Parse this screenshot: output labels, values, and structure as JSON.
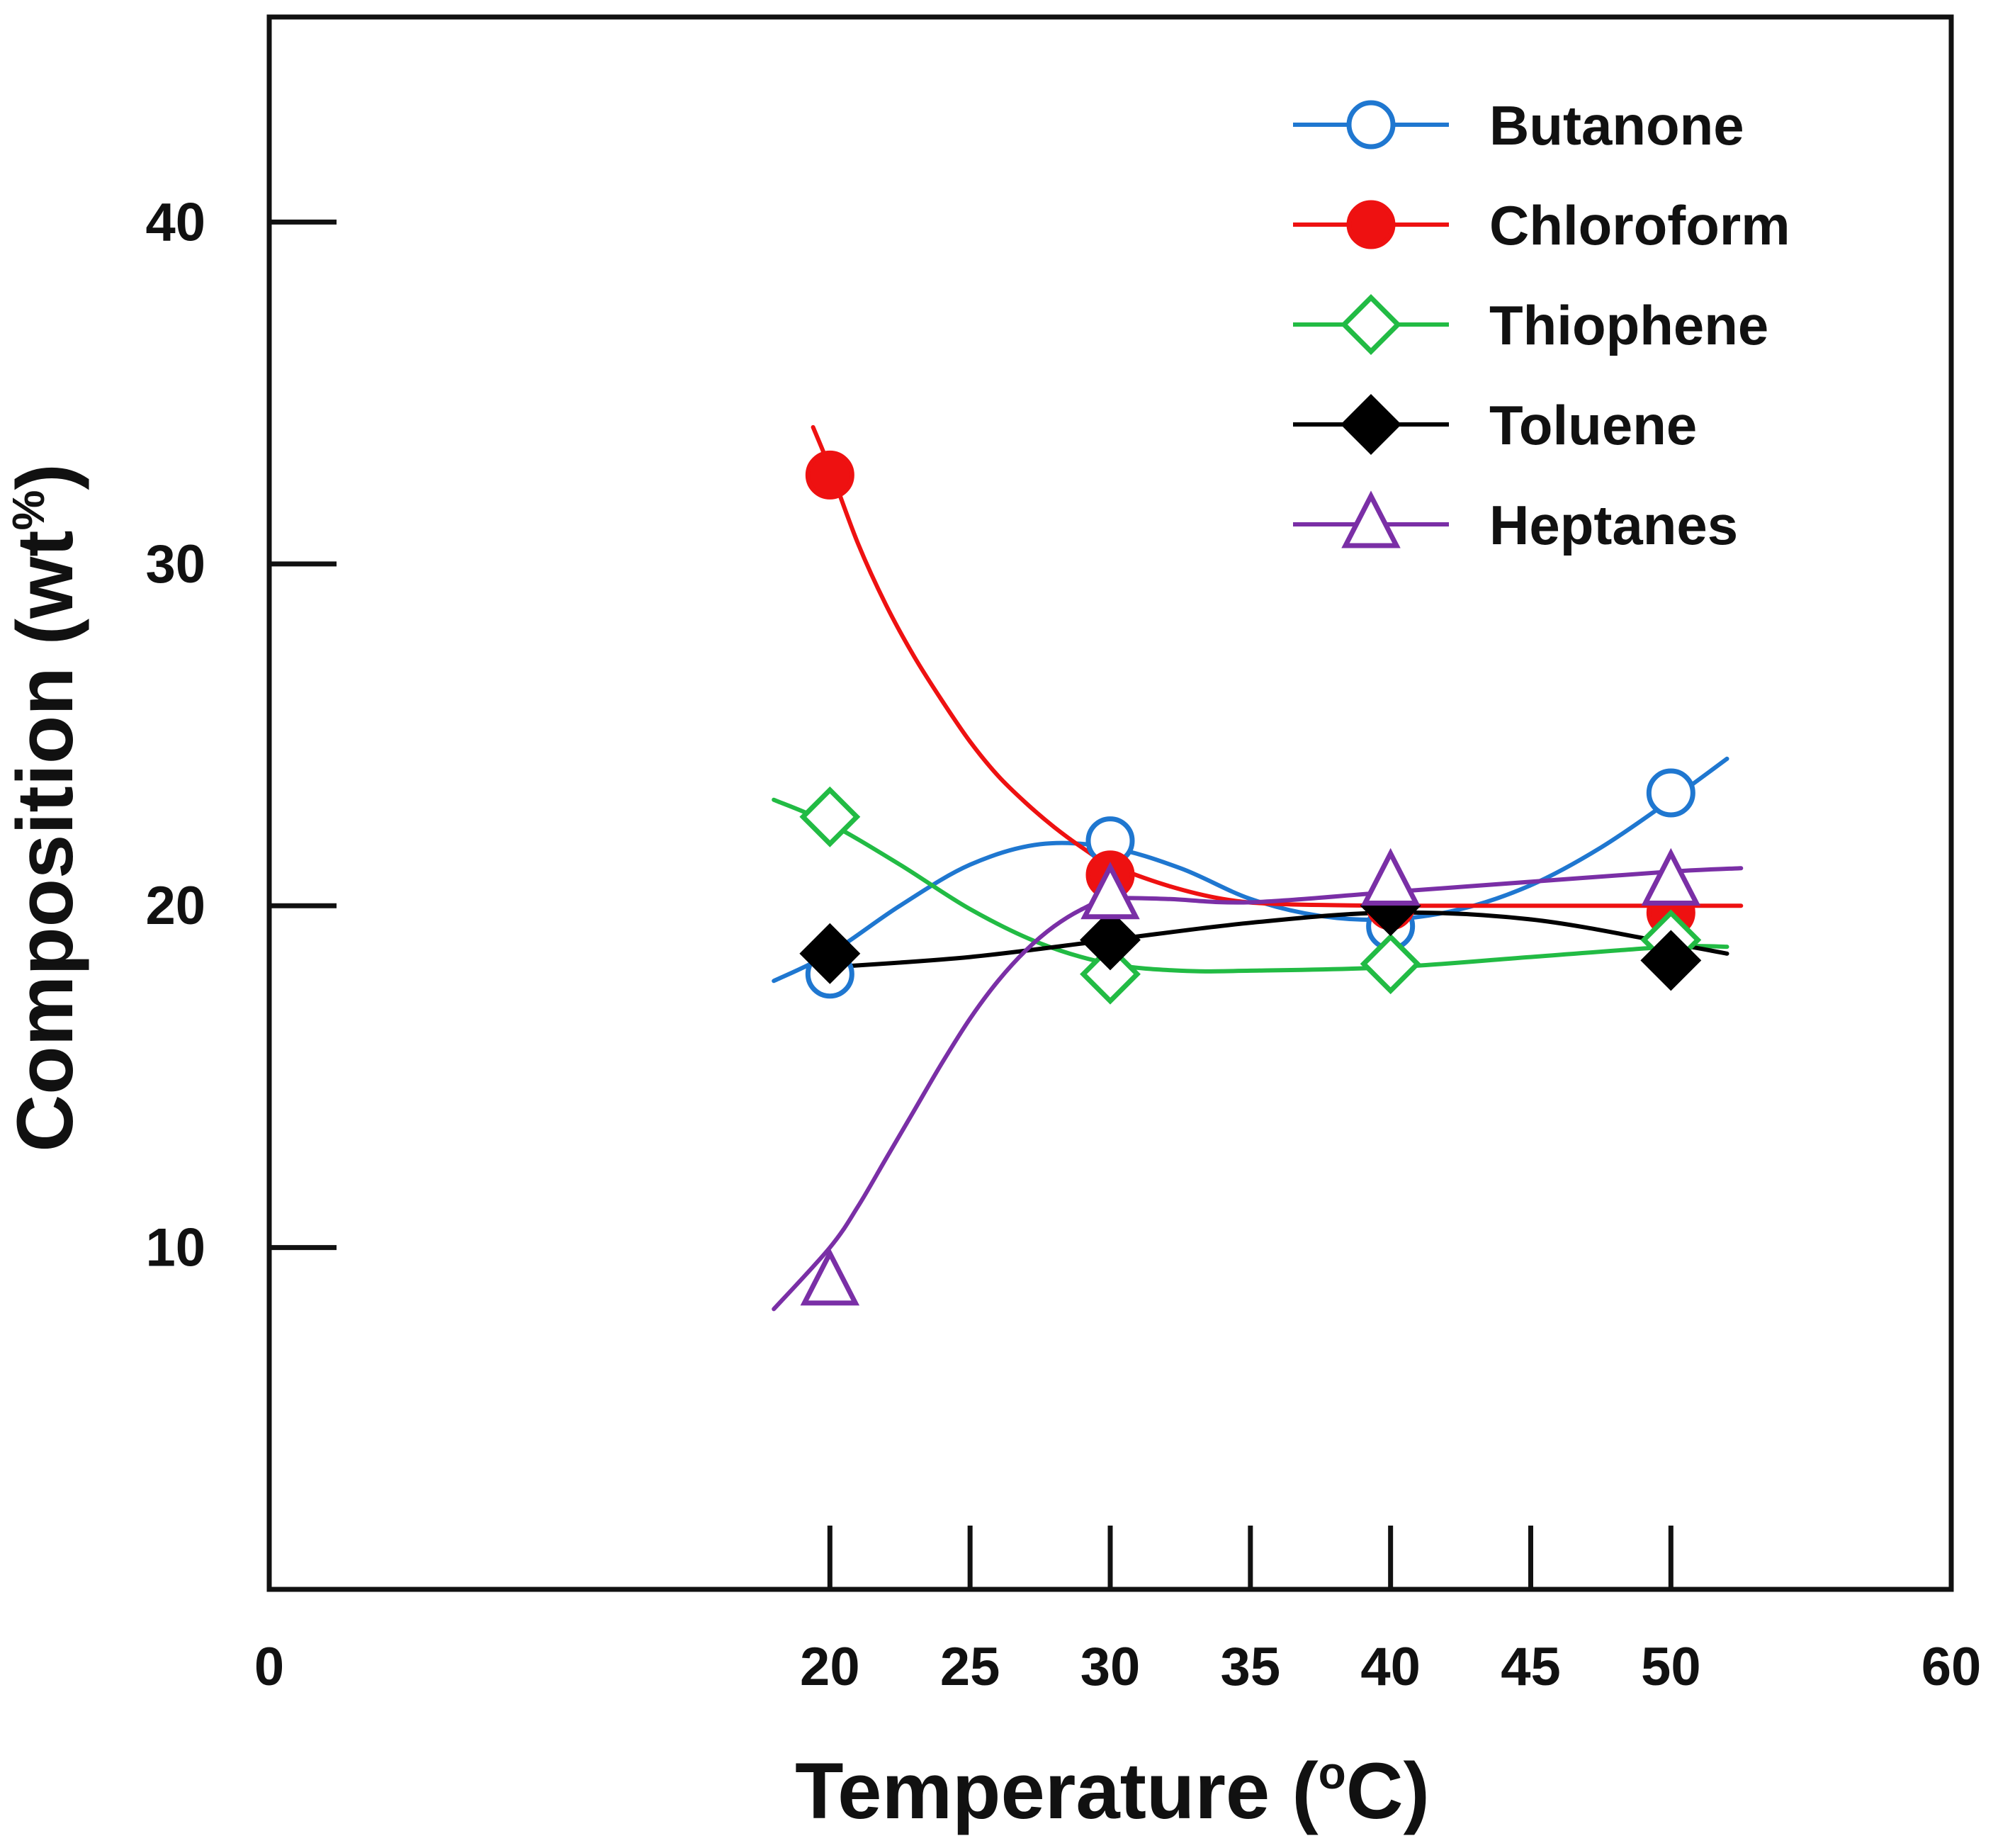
{
  "chart_data": {
    "type": "line",
    "title": "",
    "xlabel": "Temperature (",
    "xlabel_sup": "o",
    "xlabel_tail": "C)",
    "ylabel": "Composition (wt",
    "ylabel_sup": "%",
    "ylabel_tail": ")",
    "xlim": [
      0,
      60
    ],
    "ylim": [
      0,
      46
    ],
    "x_ticks": [
      0,
      20,
      25,
      30,
      35,
      40,
      45,
      50,
      60
    ],
    "x_tick_labels": [
      "0",
      "20",
      "25",
      "30",
      "35",
      "40",
      "45",
      "50",
      "60"
    ],
    "x_tick_marks": [
      20,
      25,
      30,
      35,
      40,
      45,
      50
    ],
    "y_ticks": [
      10,
      20,
      30,
      40
    ],
    "y_tick_labels": [
      "10",
      "20",
      "30",
      "40"
    ],
    "grid": false,
    "legend_position": "top-right",
    "x": [
      20,
      30,
      40,
      50
    ],
    "series": [
      {
        "name": "Butanone",
        "color": "#1f77d0",
        "marker": "circle-open",
        "values": [
          18.0,
          21.9,
          19.4,
          23.3
        ],
        "curve_x": [
          18,
          20,
          22.5,
          25,
          27.5,
          30,
          32.5,
          35,
          37.5,
          40,
          42.5,
          45,
          47.5,
          50,
          52
        ],
        "curve_y": [
          17.8,
          18.6,
          20.0,
          21.2,
          21.8,
          21.7,
          21.1,
          20.2,
          19.7,
          19.6,
          19.9,
          20.6,
          21.7,
          23.1,
          24.3
        ]
      },
      {
        "name": "Chloroform",
        "color": "#ee1111",
        "marker": "circle-filled",
        "values": [
          32.6,
          20.9,
          20.0,
          19.8
        ],
        "curve_x": [
          19.4,
          20,
          21,
          22,
          23,
          24,
          25,
          26,
          27,
          28,
          29,
          30,
          32,
          34,
          36,
          40,
          45,
          52.5
        ],
        "curve_y": [
          34.0,
          32.8,
          30.6,
          28.8,
          27.3,
          26.0,
          24.8,
          23.8,
          23.0,
          22.3,
          21.7,
          21.2,
          20.6,
          20.2,
          20.05,
          20.0,
          20.0,
          20.0
        ]
      },
      {
        "name": "Thiophene",
        "color": "#22bb44",
        "marker": "diamond-open",
        "values": [
          22.6,
          18.0,
          18.3,
          19.0
        ],
        "curve_x": [
          18,
          20,
          22.5,
          25,
          27.5,
          30,
          32.5,
          35,
          40,
          45,
          50,
          52
        ],
        "curve_y": [
          23.1,
          22.4,
          21.2,
          19.9,
          18.9,
          18.3,
          18.1,
          18.1,
          18.2,
          18.5,
          18.8,
          18.8
        ]
      },
      {
        "name": "Toluene",
        "color": "#000000",
        "marker": "diamond-filled",
        "values": [
          18.6,
          19.0,
          20.0,
          18.4
        ],
        "curve_x": [
          20,
          25,
          30,
          35,
          40,
          45,
          50,
          52
        ],
        "curve_y": [
          18.2,
          18.5,
          19.0,
          19.5,
          19.8,
          19.6,
          18.9,
          18.6
        ]
      },
      {
        "name": "Heptanes",
        "color": "#7a2fa6",
        "marker": "triangle-open",
        "values": [
          9.0,
          20.3,
          20.7,
          20.7
        ],
        "curve_x": [
          18,
          20,
          21,
          22,
          23,
          24,
          25,
          26,
          27,
          28,
          29,
          30,
          32,
          35,
          40,
          45,
          50,
          52.5
        ],
        "curve_y": [
          8.2,
          10.0,
          11.2,
          12.6,
          14.0,
          15.4,
          16.7,
          17.8,
          18.7,
          19.4,
          19.9,
          20.2,
          20.2,
          20.1,
          20.4,
          20.7,
          21.0,
          21.1
        ]
      }
    ]
  }
}
